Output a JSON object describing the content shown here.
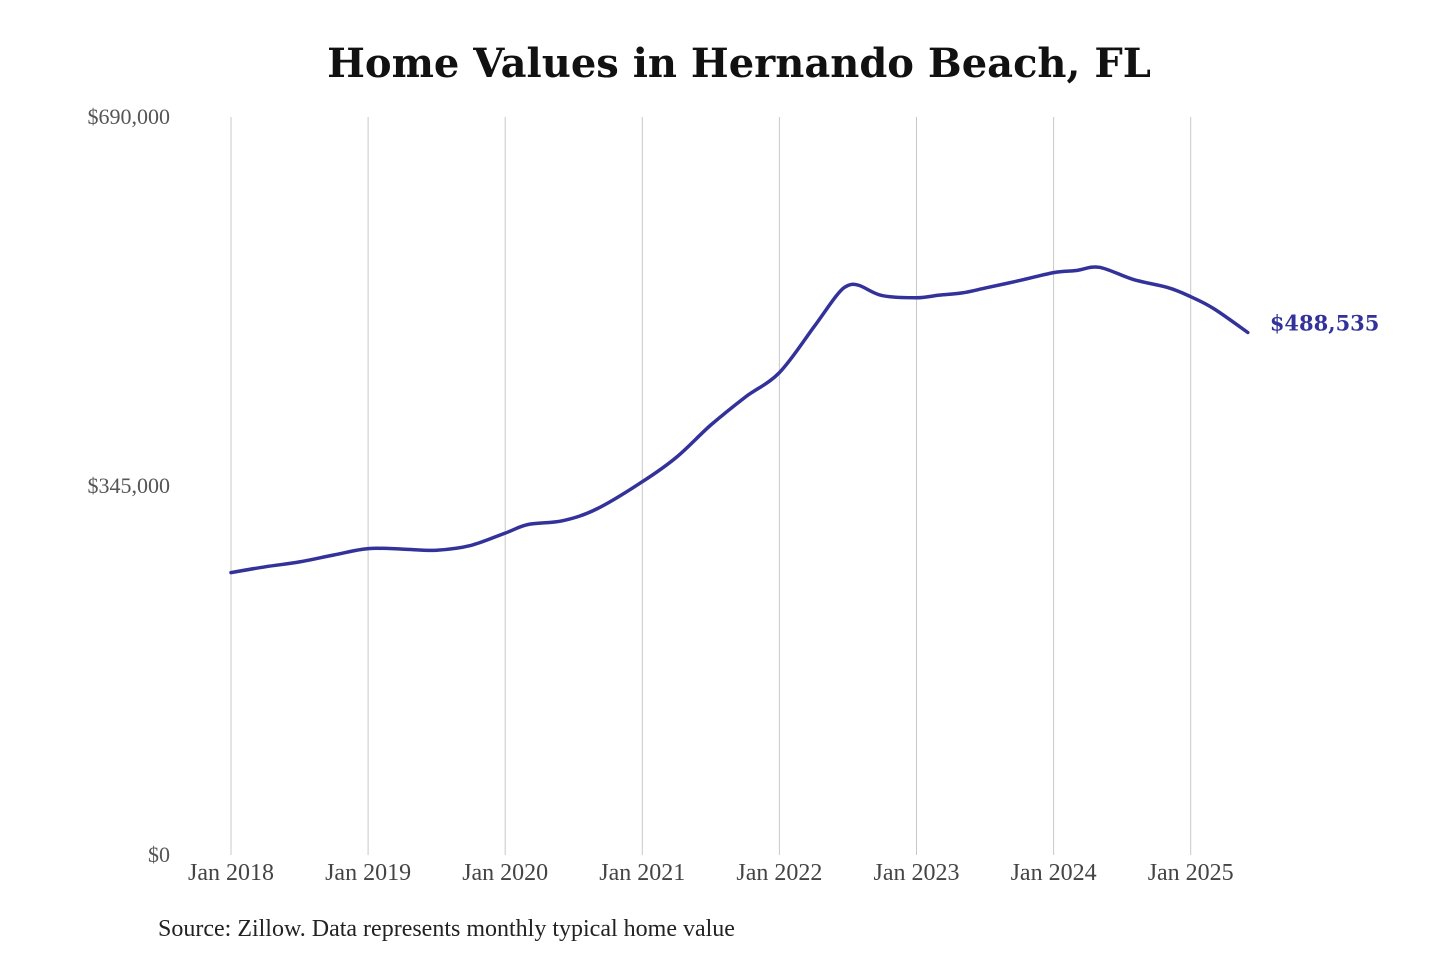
{
  "title": "Home Values in Hernando Beach, FL",
  "source_note": "Source: Zillow. Data represents monthly typical home value",
  "colors": {
    "line": "#32329a",
    "grid": "#c8c8c8",
    "text": "#555555"
  },
  "chart_data": {
    "type": "line",
    "title": "Home Values in Hernando Beach, FL",
    "xlabel": "",
    "ylabel": "",
    "ylim": [
      0,
      690000
    ],
    "y_ticks": [
      {
        "value": 0,
        "label": "$0"
      },
      {
        "value": 345000,
        "label": "$345,000"
      },
      {
        "value": 690000,
        "label": "$690,000"
      }
    ],
    "x_ticks": [
      {
        "value": "2018-01",
        "label": "Jan 2018"
      },
      {
        "value": "2019-01",
        "label": "Jan 2019"
      },
      {
        "value": "2020-01",
        "label": "Jan 2020"
      },
      {
        "value": "2021-01",
        "label": "Jan 2021"
      },
      {
        "value": "2022-01",
        "label": "Jan 2022"
      },
      {
        "value": "2023-01",
        "label": "Jan 2023"
      },
      {
        "value": "2024-01",
        "label": "Jan 2024"
      },
      {
        "value": "2025-01",
        "label": "Jan 2025"
      }
    ],
    "grid": {
      "vertical": true,
      "horizontal": false
    },
    "end_label": "$488,535",
    "series": [
      {
        "color": "#32329a",
        "points": [
          {
            "x": "2018-01",
            "y": 264000
          },
          {
            "x": "2018-04",
            "y": 269500
          },
          {
            "x": "2018-07",
            "y": 274000
          },
          {
            "x": "2018-10",
            "y": 280500
          },
          {
            "x": "2019-01",
            "y": 286500
          },
          {
            "x": "2019-04",
            "y": 286000
          },
          {
            "x": "2019-07",
            "y": 285000
          },
          {
            "x": "2019-10",
            "y": 289500
          },
          {
            "x": "2020-01",
            "y": 301000
          },
          {
            "x": "2020-03",
            "y": 309000
          },
          {
            "x": "2020-06",
            "y": 312500
          },
          {
            "x": "2020-09",
            "y": 323500
          },
          {
            "x": "2021-01",
            "y": 349000
          },
          {
            "x": "2021-04",
            "y": 372000
          },
          {
            "x": "2021-07",
            "y": 402000
          },
          {
            "x": "2021-10",
            "y": 428000
          },
          {
            "x": "2022-01",
            "y": 451000
          },
          {
            "x": "2022-04",
            "y": 493500
          },
          {
            "x": "2022-06",
            "y": 523000
          },
          {
            "x": "2022-07",
            "y": 532500
          },
          {
            "x": "2022-08",
            "y": 532500
          },
          {
            "x": "2022-10",
            "y": 523000
          },
          {
            "x": "2023-01",
            "y": 521000
          },
          {
            "x": "2023-03",
            "y": 523500
          },
          {
            "x": "2023-05",
            "y": 525500
          },
          {
            "x": "2023-07",
            "y": 530000
          },
          {
            "x": "2023-10",
            "y": 537000
          },
          {
            "x": "2024-01",
            "y": 544500
          },
          {
            "x": "2024-03",
            "y": 546500
          },
          {
            "x": "2024-05",
            "y": 549500
          },
          {
            "x": "2024-08",
            "y": 538000
          },
          {
            "x": "2024-11",
            "y": 530500
          },
          {
            "x": "2025-01",
            "y": 522000
          },
          {
            "x": "2025-03",
            "y": 511000
          },
          {
            "x": "2025-06",
            "y": 488535
          }
        ]
      }
    ]
  }
}
